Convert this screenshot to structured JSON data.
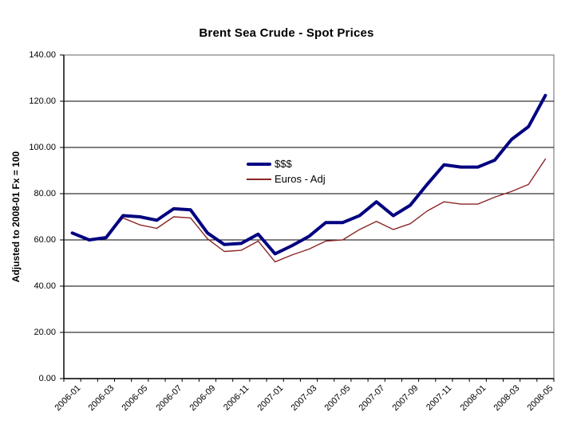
{
  "chart_data": {
    "type": "line",
    "title": "Brent Sea Crude - Spot Prices",
    "xlabel": "",
    "ylabel": "Adjusted to 2008-01 Fx = 100",
    "ylim": [
      0,
      140
    ],
    "y_tick_step": 20,
    "y_tick_labels": [
      "140.00",
      "120.00",
      "100.00",
      "80.00",
      "60.00",
      "40.00",
      "20.00",
      "0.00"
    ],
    "x_tick_labels_shown": [
      "2006-01",
      "2006-03",
      "2006-05",
      "2006-07",
      "2006-09",
      "2006-11",
      "2007-01",
      "2007-03",
      "2007-05",
      "2007-07",
      "2007-09",
      "2007-11",
      "2008-01",
      "2008-03",
      "2008-05"
    ],
    "categories": [
      "2006-01",
      "2006-02",
      "2006-03",
      "2006-04",
      "2006-05",
      "2006-06",
      "2006-07",
      "2006-08",
      "2006-09",
      "2006-10",
      "2006-11",
      "2006-12",
      "2007-01",
      "2007-02",
      "2007-03",
      "2007-04",
      "2007-05",
      "2007-06",
      "2007-07",
      "2007-08",
      "2007-09",
      "2007-10",
      "2007-11",
      "2007-12",
      "2008-01",
      "2008-02",
      "2008-03",
      "2008-04",
      "2008-05"
    ],
    "series": [
      {
        "name": "$$$",
        "color": "#000080",
        "stroke_width": 4,
        "values": [
          63,
          60,
          61,
          70.5,
          70,
          68.5,
          73.5,
          73,
          63,
          58,
          58.5,
          62.5,
          54,
          57.5,
          61.5,
          67.5,
          67.5,
          70.5,
          76.5,
          70.5,
          75,
          84,
          92.5,
          91.5,
          91.5,
          94.5,
          103.5,
          109,
          122.5
        ]
      },
      {
        "name": "Euros - Adj",
        "color": "#8B2525",
        "stroke_width": 1.4,
        "values": [
          62.5,
          60,
          61,
          69.5,
          66.5,
          65,
          70,
          69.5,
          60.5,
          55,
          55.5,
          59.5,
          50.5,
          53.5,
          56,
          59.5,
          60,
          64.5,
          68,
          64.5,
          67,
          72.5,
          76.5,
          75.5,
          75.5,
          78.5,
          81,
          84,
          95
        ]
      }
    ],
    "grid": "horizontal",
    "grid_color": "#000000",
    "plot_border_color": "#808080",
    "axis_color": "#000000",
    "background": "#FFFFFF",
    "legend_position": "inside-center-left",
    "legend_border": "none"
  }
}
